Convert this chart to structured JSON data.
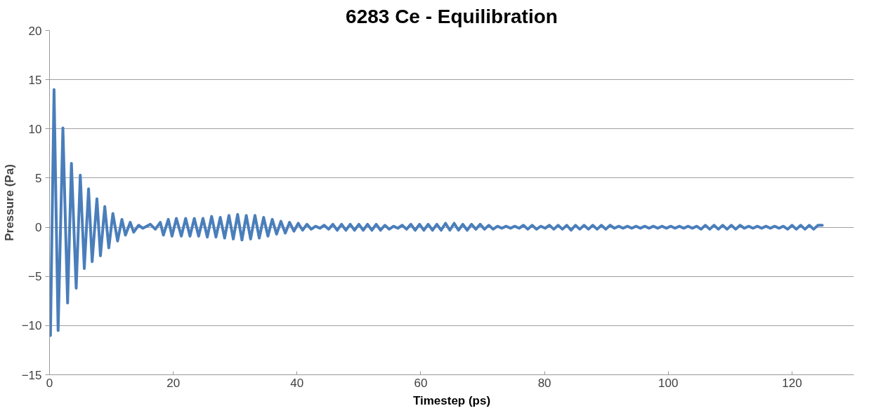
{
  "chart_data": {
    "type": "line",
    "title": "6283 Ce - Equilibration",
    "xlabel": "Timestep (ps)",
    "ylabel": "Pressure (Pa)",
    "xlim": [
      0,
      130
    ],
    "xticks": [
      0,
      20,
      40,
      60,
      80,
      100,
      120
    ],
    "ylim": [
      -15,
      20
    ],
    "yticks": [
      -15,
      -10,
      -5,
      0,
      5,
      10,
      15,
      20
    ],
    "grid": "y",
    "marker": "none",
    "line_style": "solid",
    "series": [
      {
        "color": "#4a7ebb",
        "x": [
          0.15,
          0.73,
          1.39,
          2.16,
          2.92,
          3.54,
          4.31,
          4.97,
          5.62,
          6.31,
          6.89,
          7.66,
          8.23,
          8.93,
          9.58,
          10.24,
          11.0,
          11.7,
          12.27,
          13.05,
          13.6,
          14.4,
          15.1,
          16.3,
          17.1,
          17.9,
          18.4,
          19.2,
          19.8,
          20.5,
          21.3,
          22.0,
          22.7,
          23.4,
          24.1,
          24.8,
          25.5,
          26.2,
          26.9,
          27.6,
          28.3,
          29.0,
          29.7,
          30.4,
          31.1,
          31.8,
          32.5,
          33.2,
          33.9,
          34.6,
          35.3,
          36.0,
          36.7,
          37.4,
          38.1,
          38.8,
          39.5,
          40.2,
          40.9,
          41.6,
          42.3,
          43.0,
          43.7,
          44.4,
          45.1,
          45.8,
          46.5,
          47.2,
          47.9,
          48.6,
          49.3,
          50.0,
          50.7,
          51.4,
          52.1,
          52.8,
          53.5,
          54.2,
          54.9,
          55.6,
          56.3,
          57.0,
          57.7,
          58.4,
          59.1,
          59.8,
          60.5,
          61.2,
          61.9,
          62.6,
          63.3,
          64.0,
          64.7,
          65.4,
          66.1,
          66.8,
          67.5,
          68.2,
          68.9,
          69.6,
          70.3,
          71.0,
          71.7,
          72.4,
          73.1,
          73.8,
          74.5,
          75.2,
          75.9,
          76.6,
          77.3,
          78.0,
          78.7,
          79.4,
          80.1,
          80.8,
          81.5,
          82.2,
          82.9,
          83.6,
          84.3,
          85.0,
          85.7,
          86.4,
          87.1,
          87.8,
          88.5,
          89.2,
          89.9,
          90.6,
          91.3,
          92.0,
          92.7,
          93.4,
          94.1,
          94.8,
          95.5,
          96.2,
          96.9,
          97.6,
          98.3,
          99.0,
          99.7,
          100.4,
          101.1,
          101.8,
          102.5,
          103.2,
          103.9,
          104.6,
          105.3,
          106.0,
          106.7,
          107.4,
          108.1,
          108.8,
          109.5,
          110.2,
          110.9,
          111.6,
          112.3,
          113.0,
          113.7,
          114.4,
          115.1,
          115.8,
          116.5,
          117.2,
          117.9,
          118.6,
          119.3,
          120.0,
          120.7,
          121.4,
          122.1,
          122.8,
          123.5,
          124.2,
          124.9
        ],
        "values": [
          -11.0,
          14.0,
          -10.5,
          10.1,
          -7.7,
          6.5,
          -6.2,
          5.3,
          -4.2,
          3.9,
          -3.5,
          2.9,
          -2.9,
          2.1,
          -2.1,
          1.4,
          -1.4,
          0.8,
          -0.8,
          0.5,
          -0.5,
          0.2,
          -0.1,
          0.3,
          -0.2,
          0.5,
          -0.8,
          0.8,
          -0.9,
          0.9,
          -0.9,
          0.9,
          -0.9,
          0.9,
          -0.9,
          0.9,
          -1.0,
          1.1,
          -1.0,
          1.0,
          -1.1,
          1.2,
          -1.2,
          1.3,
          -1.3,
          1.2,
          -1.2,
          1.2,
          -1.1,
          1.0,
          -0.9,
          0.8,
          -0.7,
          0.6,
          -0.6,
          0.5,
          -0.4,
          0.4,
          -0.3,
          0.3,
          -0.2,
          0.1,
          -0.1,
          0.2,
          -0.2,
          0.3,
          -0.3,
          0.3,
          -0.3,
          0.3,
          -0.3,
          0.3,
          -0.3,
          0.3,
          -0.3,
          0.3,
          -0.3,
          0.2,
          -0.2,
          0.1,
          -0.1,
          0.2,
          -0.2,
          0.3,
          -0.3,
          0.3,
          -0.3,
          0.3,
          -0.3,
          0.3,
          -0.3,
          0.4,
          -0.3,
          0.4,
          -0.3,
          0.3,
          -0.3,
          0.3,
          -0.2,
          0.3,
          -0.2,
          0.2,
          -0.2,
          0.1,
          -0.1,
          0.1,
          -0.1,
          0.1,
          -0.1,
          0.2,
          -0.2,
          0.2,
          -0.2,
          0.1,
          -0.1,
          0.2,
          -0.2,
          0.2,
          -0.2,
          0.2,
          -0.3,
          0.2,
          -0.2,
          0.2,
          -0.2,
          0.2,
          -0.2,
          0.2,
          -0.2,
          0.2,
          -0.1,
          0.1,
          -0.1,
          0.1,
          -0.1,
          0.1,
          -0.1,
          0.1,
          -0.1,
          0.1,
          -0.1,
          0.1,
          -0.1,
          0.1,
          -0.1,
          0.1,
          -0.1,
          0.1,
          -0.1,
          0.1,
          -0.2,
          0.2,
          -0.2,
          0.2,
          -0.2,
          0.2,
          -0.2,
          0.2,
          -0.2,
          0.2,
          -0.1,
          0.1,
          -0.1,
          0.1,
          -0.1,
          0.1,
          -0.1,
          0.1,
          -0.1,
          0.1,
          -0.2,
          0.2,
          -0.2,
          0.2,
          -0.2,
          0.2,
          -0.2,
          0.2,
          0.2
        ]
      }
    ]
  }
}
